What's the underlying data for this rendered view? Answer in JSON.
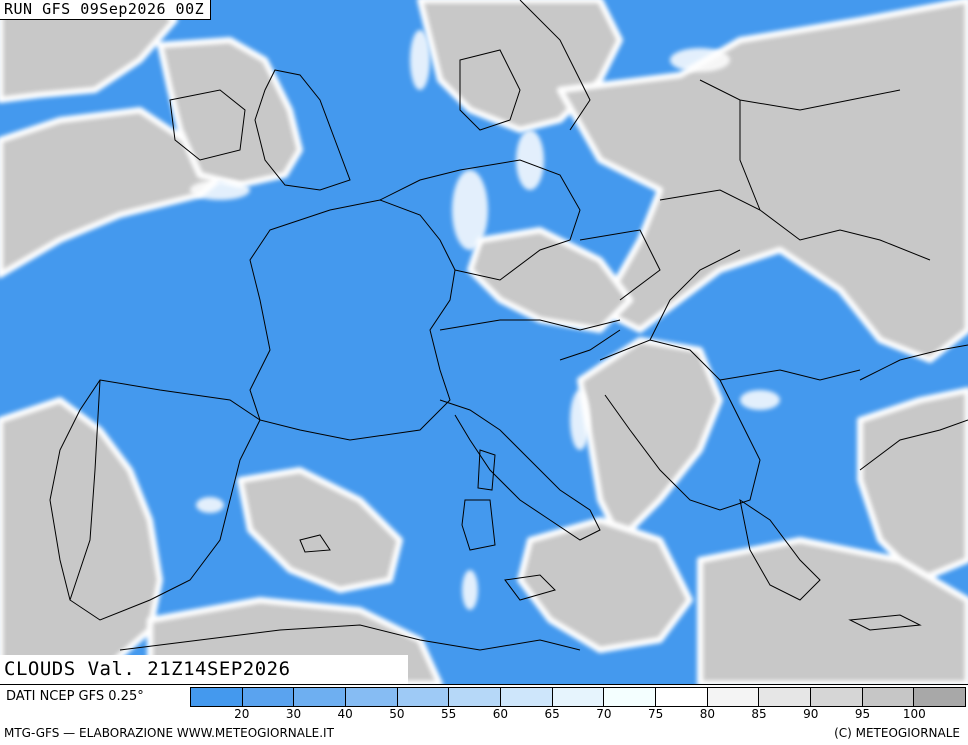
{
  "header": {
    "run_label": "RUN GFS 09Sep2026 00Z"
  },
  "map": {
    "field": "CLOUDS",
    "valid_label": "CLOUDS Val. 21Z14SEP2026",
    "colors": {
      "sea_clear": "#4499ee",
      "land_cloud": "#c8c8c8",
      "cloud_edge": "#ffffff",
      "border_line": "#000000"
    }
  },
  "footer": {
    "source": "DATI NCEP GFS 0.25°",
    "credit_left": "MTG-GFS — ELABORAZIONE WWW.METEOGIORNALE.IT",
    "credit_right": "(C) METEOGIORNALE"
  },
  "legend": {
    "colors": [
      "#4499ee",
      "#5aa3ef",
      "#6eaff1",
      "#86bcf3",
      "#9ecaf6",
      "#b6d8f8",
      "#cee6fb",
      "#e6f4fd",
      "#f4ffff",
      "#ffffff",
      "#f4f4f4",
      "#e6e6e6",
      "#d6d6d6",
      "#c6c6c6",
      "#a8a8a8"
    ],
    "ticks": [
      "20",
      "30",
      "40",
      "50",
      "55",
      "60",
      "65",
      "70",
      "75",
      "80",
      "85",
      "90",
      "95",
      "100"
    ]
  }
}
